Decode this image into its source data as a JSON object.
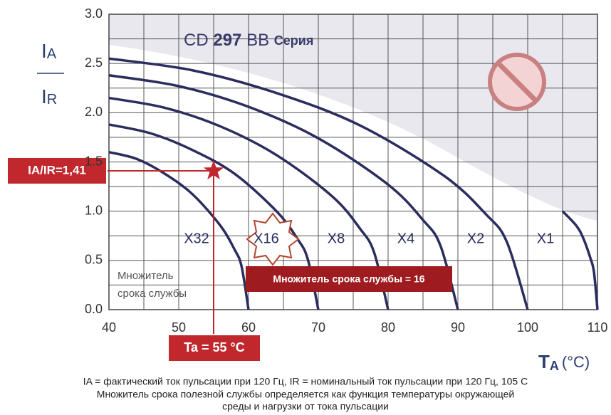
{
  "chart_data": {
    "type": "line",
    "title_parts": [
      "CD",
      "297",
      "BB",
      "Серия"
    ],
    "y_label": {
      "top_main": "I",
      "top_sub": "A",
      "bottom_main": "I",
      "bottom_sub": "R"
    },
    "x_label": {
      "main": "T",
      "sub": "A",
      "unit": "(°C)"
    },
    "xlim": [
      40,
      110
    ],
    "xticks": [
      40,
      50,
      60,
      70,
      80,
      90,
      100,
      110
    ],
    "xminor_ticks": [
      45,
      55,
      65,
      75,
      85,
      95,
      105
    ],
    "ylim": [
      0,
      3
    ],
    "yticks": [
      {
        "value": 0,
        "label": "0.0"
      },
      0.5,
      {
        "value": 1,
        "label": "1.0"
      },
      1.5,
      {
        "value": 2,
        "label": "2.0"
      },
      2.5,
      {
        "value": 3,
        "label": "3.0"
      }
    ],
    "yminor_ticks": [
      0.25,
      0.75,
      1.25,
      1.75,
      2.25,
      2.75
    ],
    "grid": true,
    "series": [
      {
        "name": "X32",
        "color": "#2a2d5e",
        "x": [
          40,
          44,
          48,
          52,
          56,
          58,
          59,
          60
        ],
        "values": [
          1.6,
          1.53,
          1.38,
          1.17,
          0.85,
          0.61,
          0.44,
          0
        ]
      },
      {
        "name": "X16",
        "color": "#2a2d5e",
        "x": [
          40,
          46,
          52,
          58,
          64,
          67,
          68.5,
          70
        ],
        "values": [
          1.88,
          1.79,
          1.62,
          1.38,
          1.0,
          0.72,
          0.51,
          0
        ]
      },
      {
        "name": "X8",
        "color": "#2a2d5e",
        "x": [
          40,
          48,
          56,
          64,
          72,
          76,
          78,
          80
        ],
        "values": [
          2.15,
          2.05,
          1.86,
          1.57,
          1.15,
          0.82,
          0.58,
          0
        ]
      },
      {
        "name": "X4",
        "color": "#2a2d5e",
        "x": [
          40,
          50,
          60,
          70,
          80,
          85,
          87.5,
          90
        ],
        "values": [
          2.38,
          2.27,
          2.06,
          1.74,
          1.27,
          0.91,
          0.65,
          0
        ]
      },
      {
        "name": "X2",
        "color": "#2a2d5e",
        "x": [
          40,
          52,
          64,
          76,
          88,
          94,
          97,
          100
        ],
        "values": [
          2.55,
          2.43,
          2.2,
          1.87,
          1.36,
          0.97,
          0.69,
          0
        ]
      },
      {
        "name": "X1",
        "color": "#2a2d5e",
        "x": [
          105,
          107,
          108,
          109,
          109.5,
          110
        ],
        "values": [
          1.0,
          0.85,
          0.72,
          0.52,
          0.38,
          0
        ]
      }
    ],
    "marker": {
      "x": 55,
      "y": 1.41,
      "color": "#c0282d",
      "y_label": "IA/IR=1,41",
      "x_label": "Ta = 55 °C"
    },
    "annotations": {
      "multiplier_box": "Множитель срока службы = 16",
      "multiplier_note": [
        "Множитель",
        "срока службы"
      ]
    },
    "footnote": [
      "IA = фактический ток пульсации при 120 Гц, IR = номинальный ток пульсации при 120 Гц, 105 C",
      "Множитель срока полезной службы определяется как функция температуры окружающей",
      "среды и нагрузки от тока пульсации"
    ]
  }
}
